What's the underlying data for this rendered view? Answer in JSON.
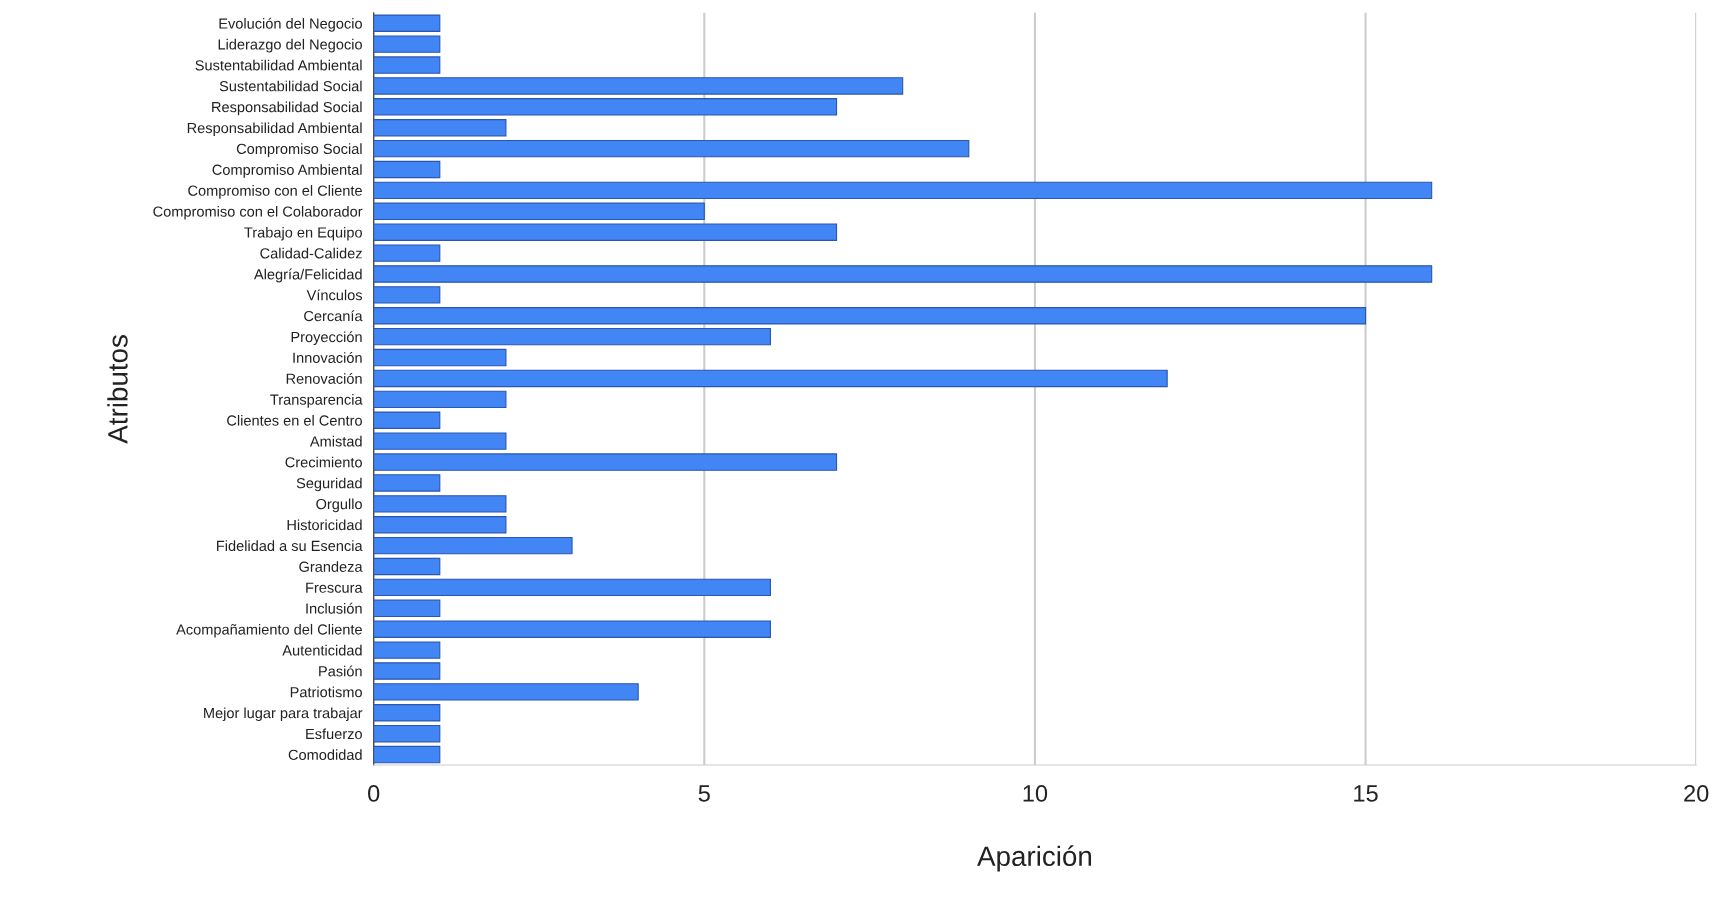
{
  "chart_data": {
    "type": "bar",
    "orientation": "horizontal",
    "xlabel": "Aparición",
    "ylabel": "Atributos",
    "categories": [
      "Evolución del Negocio",
      "Liderazgo del Negocio",
      "Sustentabilidad Ambiental",
      "Sustentabilidad Social",
      "Responsabilidad Social",
      "Responsabilidad Ambiental",
      "Compromiso Social",
      "Compromiso Ambiental",
      "Compromiso con el Cliente",
      "Compromiso con el Colaborador",
      "Trabajo en Equipo",
      "Calidad-Calidez",
      "Alegría/Felicidad",
      "Vínculos",
      "Cercanía",
      "Proyección",
      "Innovación",
      "Renovación",
      "Transparencia",
      "Clientes en el Centro",
      "Amistad",
      "Crecimiento",
      "Seguridad",
      "Orgullo",
      "Historicidad",
      "Fidelidad a su Esencia",
      "Grandeza",
      "Frescura",
      "Inclusión",
      "Acompañamiento del Cliente",
      "Autenticidad",
      "Pasión",
      "Patriotismo",
      "Mejor lugar para trabajar",
      "Esfuerzo",
      "Comodidad"
    ],
    "values": [
      1,
      1,
      1,
      8,
      7,
      2,
      9,
      1,
      16,
      5,
      7,
      1,
      16,
      1,
      15,
      6,
      2,
      12,
      2,
      1,
      2,
      7,
      1,
      2,
      2,
      3,
      1,
      6,
      1,
      6,
      1,
      1,
      4,
      1,
      1,
      1
    ],
    "color": "#4285f4",
    "xlim": [
      0,
      20
    ],
    "xticks": [
      0,
      5,
      10,
      15,
      20
    ],
    "grid": "x",
    "legend": false
  }
}
